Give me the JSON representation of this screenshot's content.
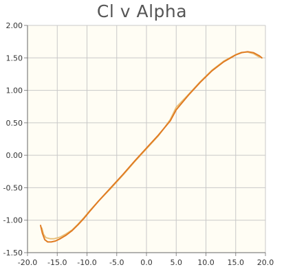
{
  "chart_data": {
    "type": "line",
    "title": "Cl v Alpha",
    "xlabel": "",
    "ylabel": "",
    "xlim": [
      -20,
      20
    ],
    "ylim": [
      -1.5,
      2.0
    ],
    "x_ticks": [
      "-20.0",
      "-15.0",
      "-10.0",
      "-5.0",
      "0.0",
      "5.0",
      "10.0",
      "15.0",
      "20.0"
    ],
    "y_ticks": [
      "2.00",
      "1.50",
      "1.00",
      "0.50",
      "0.00",
      "-0.50",
      "-1.00",
      "-1.50"
    ],
    "grid": true,
    "legend": "none",
    "plot_background": "#fffdf4",
    "series": [
      {
        "color": "#e8c07a",
        "points": [
          [
            -17.6,
            -1.12
          ],
          [
            -17.3,
            -1.22
          ],
          [
            -16.9,
            -1.27
          ],
          [
            -16.2,
            -1.285
          ],
          [
            -15.5,
            -1.285
          ],
          [
            -14.5,
            -1.26
          ],
          [
            -13.5,
            -1.21
          ],
          [
            -12.5,
            -1.15
          ],
          [
            -11.5,
            -1.06
          ],
          [
            -10.5,
            -0.96
          ],
          [
            -9.5,
            -0.85
          ],
          [
            -8.0,
            -0.7
          ],
          [
            -6.0,
            -0.51
          ],
          [
            -4.0,
            -0.31
          ],
          [
            -2.0,
            -0.1
          ],
          [
            0.0,
            0.1
          ],
          [
            2.0,
            0.3
          ],
          [
            3.0,
            0.42
          ],
          [
            4.0,
            0.55
          ],
          [
            5.0,
            0.74
          ],
          [
            7.0,
            0.93
          ],
          [
            9.0,
            1.13
          ],
          [
            11.0,
            1.31
          ],
          [
            13.0,
            1.45
          ],
          [
            15.0,
            1.55
          ],
          [
            16.0,
            1.585
          ],
          [
            17.0,
            1.59
          ],
          [
            18.0,
            1.565
          ],
          [
            19.0,
            1.51
          ]
        ]
      },
      {
        "color": "#e07b22",
        "points": [
          [
            -17.8,
            -1.08
          ],
          [
            -17.5,
            -1.2
          ],
          [
            -17.1,
            -1.3
          ],
          [
            -16.6,
            -1.335
          ],
          [
            -16.0,
            -1.335
          ],
          [
            -15.3,
            -1.32
          ],
          [
            -14.5,
            -1.285
          ],
          [
            -13.5,
            -1.23
          ],
          [
            -12.5,
            -1.16
          ],
          [
            -11.5,
            -1.07
          ],
          [
            -10.5,
            -0.97
          ],
          [
            -9.5,
            -0.86
          ],
          [
            -8.0,
            -0.7
          ],
          [
            -6.0,
            -0.5
          ],
          [
            -4.0,
            -0.3
          ],
          [
            -2.0,
            -0.09
          ],
          [
            0.0,
            0.11
          ],
          [
            2.0,
            0.31
          ],
          [
            4.0,
            0.53
          ],
          [
            5.0,
            0.7
          ],
          [
            7.0,
            0.92
          ],
          [
            9.0,
            1.12
          ],
          [
            11.0,
            1.3
          ],
          [
            13.0,
            1.44
          ],
          [
            15.0,
            1.545
          ],
          [
            16.0,
            1.58
          ],
          [
            17.0,
            1.595
          ],
          [
            18.0,
            1.58
          ],
          [
            19.0,
            1.53
          ],
          [
            19.4,
            1.5
          ]
        ]
      }
    ]
  }
}
